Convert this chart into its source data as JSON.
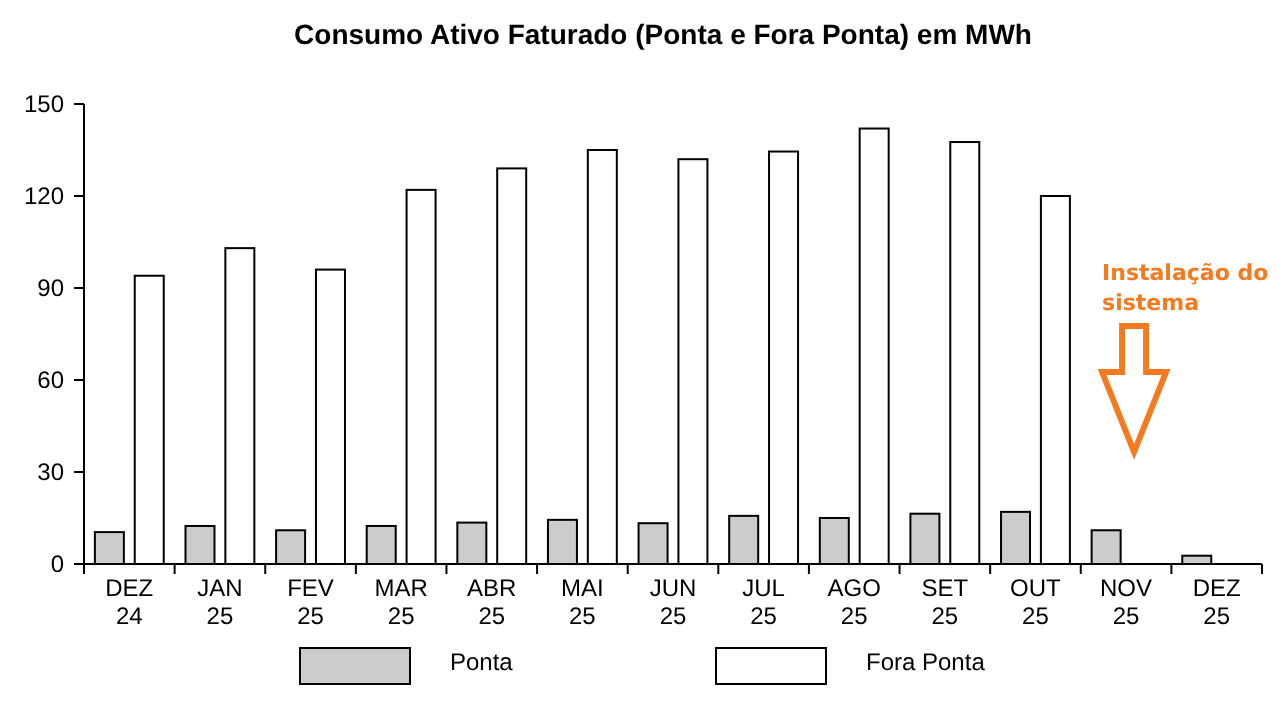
{
  "chart_data": {
    "type": "bar",
    "title": "Consumo Ativo Faturado (Ponta e Fora Ponta) em MWh",
    "categories": [
      "DEZ 24",
      "JAN 25",
      "FEV 25",
      "MAR 25",
      "ABR 25",
      "MAI 25",
      "JUN 25",
      "JUL 25",
      "AGO 25",
      "SET 25",
      "OUT 25",
      "NOV 25",
      "DEZ 25"
    ],
    "series": [
      {
        "name": "Ponta",
        "color": "#cccccc",
        "values": [
          10.4,
          12.4,
          11,
          12.4,
          13.5,
          14.4,
          13.3,
          15.7,
          15,
          16.4,
          17,
          11,
          2.7
        ]
      },
      {
        "name": "Fora Ponta",
        "color": "#ffffff",
        "values": [
          94,
          103,
          96,
          122,
          129,
          135,
          132,
          134.5,
          142,
          137.6,
          120,
          null,
          null
        ]
      }
    ],
    "ylim": [
      0,
      150
    ],
    "yticks": [
      0,
      30,
      60,
      90,
      120,
      150
    ],
    "grid": false,
    "legend": "bottom",
    "annotations": [
      "Instalação do sistema"
    ]
  }
}
